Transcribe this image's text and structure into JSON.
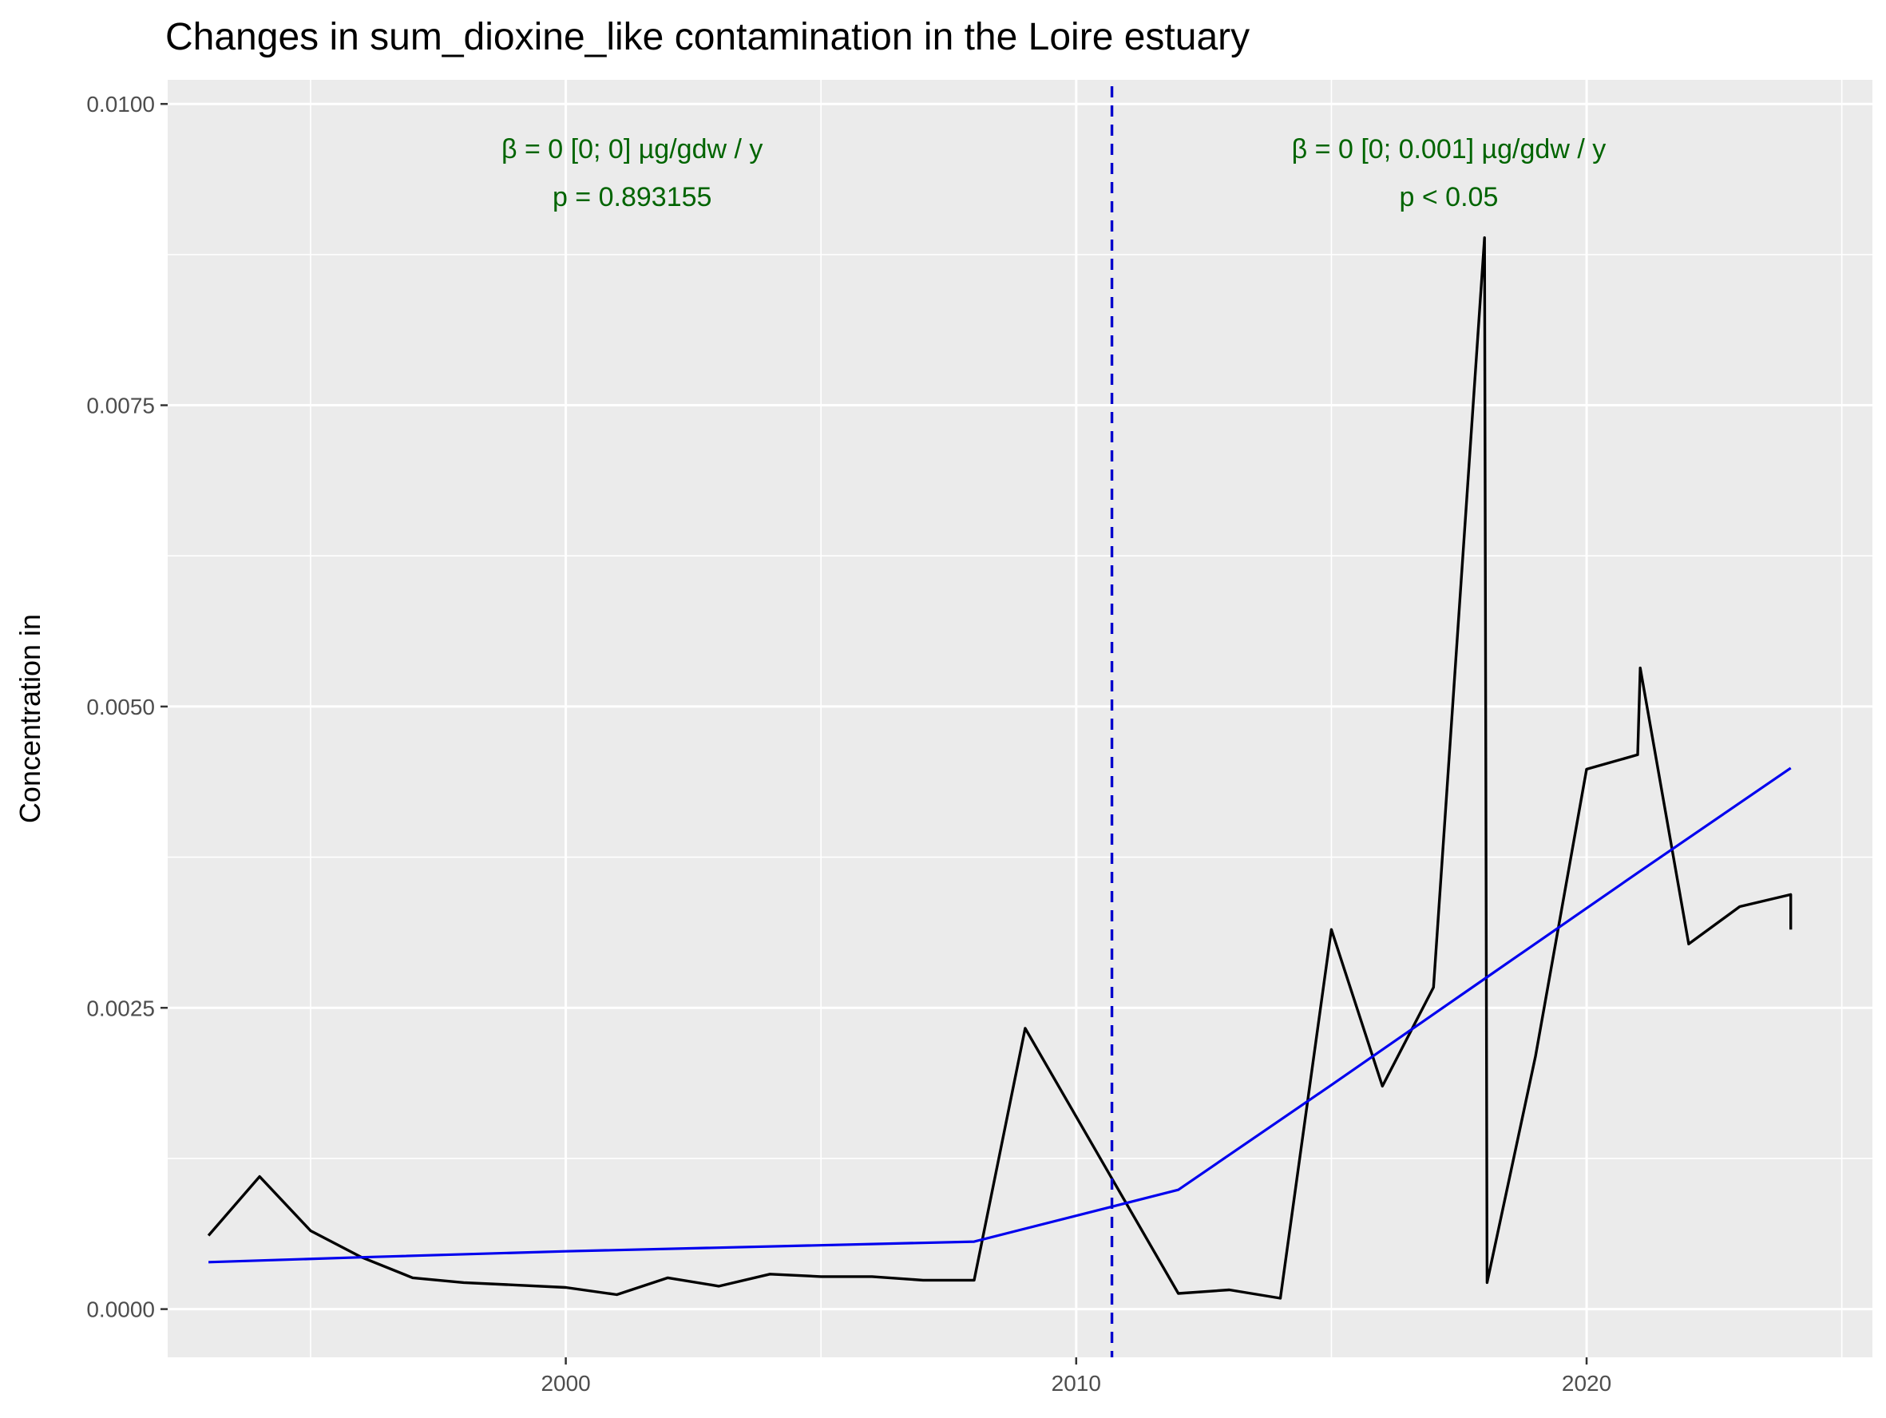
{
  "chart_data": {
    "type": "line",
    "title": "Changes in sum_dioxine_like contamination in the Loire estuary",
    "xlabel": "",
    "ylabel": "Concentration in",
    "xlim": [
      1992.2,
      2025.6
    ],
    "ylim": [
      -0.0004,
      0.0102
    ],
    "x_ticks": [
      {
        "value": 2000,
        "label": "2000"
      },
      {
        "value": 2010,
        "label": "2010"
      },
      {
        "value": 2020,
        "label": "2020"
      }
    ],
    "x_minor_ticks": [
      1995,
      2005,
      2015,
      2025
    ],
    "y_ticks": [
      {
        "value": 0.0,
        "label": "0.0000"
      },
      {
        "value": 0.0025,
        "label": "0.0025"
      },
      {
        "value": 0.005,
        "label": "0.0050"
      },
      {
        "value": 0.0075,
        "label": "0.0075"
      },
      {
        "value": 0.01,
        "label": "0.0100"
      }
    ],
    "y_minor_ticks": [
      0.00125,
      0.00375,
      0.00625,
      0.00875
    ],
    "grid": true,
    "series": [
      {
        "color": "#000000",
        "points": [
          [
            1993.0,
            0.00061
          ],
          [
            1994.0,
            0.0011
          ],
          [
            1995.0,
            0.00065
          ],
          [
            1996.0,
            0.00043
          ],
          [
            1997.0,
            0.00026
          ],
          [
            1998.0,
            0.00022
          ],
          [
            1999.0,
            0.0002
          ],
          [
            2000.0,
            0.00018
          ],
          [
            2001.0,
            0.00012
          ],
          [
            2002.0,
            0.00026
          ],
          [
            2003.0,
            0.00019
          ],
          [
            2004.0,
            0.00029
          ],
          [
            2005.0,
            0.00027
          ],
          [
            2006.0,
            0.00027
          ],
          [
            2007.0,
            0.00024
          ],
          [
            2008.0,
            0.00024
          ],
          [
            2009.0,
            0.00233
          ],
          [
            2012.0,
            0.00013
          ],
          [
            2013.0,
            0.00016
          ],
          [
            2014.0,
            9e-05
          ],
          [
            2015.0,
            0.00315
          ],
          [
            2016.0,
            0.00185
          ],
          [
            2017.0,
            0.00267
          ],
          [
            2018.0,
            0.00889
          ],
          [
            2018.05,
            0.00022
          ],
          [
            2019.0,
            0.0021
          ],
          [
            2020.0,
            0.00448
          ],
          [
            2021.0,
            0.0046
          ],
          [
            2021.05,
            0.00532
          ],
          [
            2022.0,
            0.00303
          ],
          [
            2023.0,
            0.00334
          ],
          [
            2024.0,
            0.00344
          ],
          [
            2024.0,
            0.00315
          ]
        ]
      },
      {
        "color": "#0000ee",
        "points": [
          [
            1993.0,
            0.00039
          ],
          [
            1996.0,
            0.00043
          ],
          [
            2000.0,
            0.00048
          ],
          [
            2008.0,
            0.00056
          ],
          [
            2010.7,
            0.00085
          ],
          [
            2012.0,
            0.00099
          ],
          [
            2015.0,
            0.00186
          ],
          [
            2018.0,
            0.00274
          ],
          [
            2021.0,
            0.00362
          ],
          [
            2024.0,
            0.00449
          ]
        ]
      }
    ],
    "breakpoint": {
      "x": 2010.7,
      "color": "#0000cc",
      "style": "dashed"
    },
    "annotations": [
      {
        "x": 2001.3,
        "lines": [
          "β = 0 [0; 0] µg/gdw / y",
          "p = 0.893155"
        ],
        "color": "#006400"
      },
      {
        "x": 2017.3,
        "lines": [
          "β = 0 [0; 0.001] µg/gdw / y",
          "p < 0.05"
        ],
        "color": "#006400"
      }
    ]
  }
}
